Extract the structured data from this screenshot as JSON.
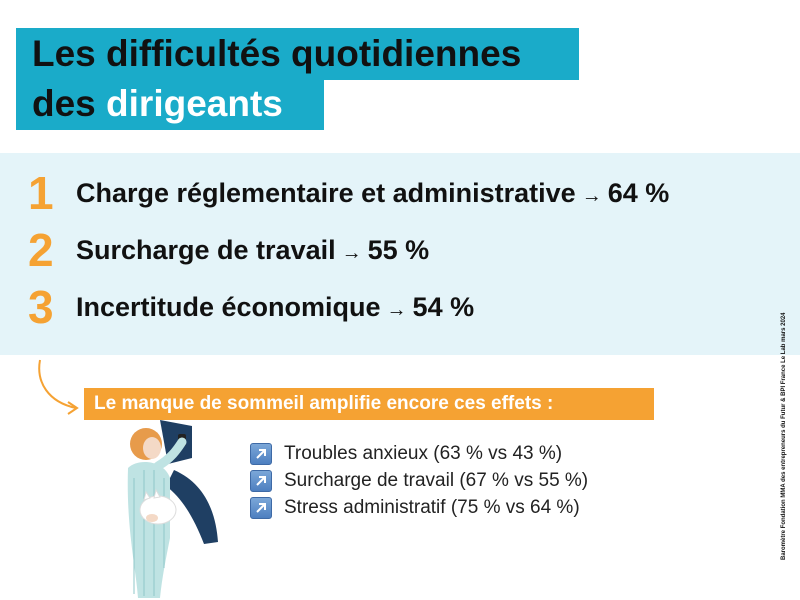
{
  "title": {
    "line1": "Les difficultés quotidiennes",
    "line2_prefix": "des ",
    "line2_highlight": "dirigeants"
  },
  "ranking": [
    {
      "rank": "1",
      "label": "Charge réglementaire et administrative",
      "arrow": "→",
      "value": "64 %"
    },
    {
      "rank": "2",
      "label": "Surcharge de travail",
      "arrow": "→",
      "value": "55 %"
    },
    {
      "rank": "3",
      "label": "Incertitude économique",
      "arrow": "→",
      "value": "54 %"
    }
  ],
  "subtitle": "Le manque de sommeil amplifie encore ces effets :",
  "effects": [
    {
      "icon": "up-right-arrow-icon",
      "text": "Troubles anxieux (63 % vs 43 %)"
    },
    {
      "icon": "up-right-arrow-icon",
      "text": "Surcharge de travail (67 % vs 55 %)"
    },
    {
      "icon": "up-right-arrow-icon",
      "text": "Stress administratif (75 % vs 64 %)"
    }
  ],
  "source": "Baromètre Fondation MMA des entrepreneurs du Futur & BPI France Le Lab mars 2024",
  "colors": {
    "title_bg": "#1aabc9",
    "band_bg": "#e4f4f9",
    "accent_orange": "#f5a233",
    "arrow_icon": "#4d7fc0"
  }
}
